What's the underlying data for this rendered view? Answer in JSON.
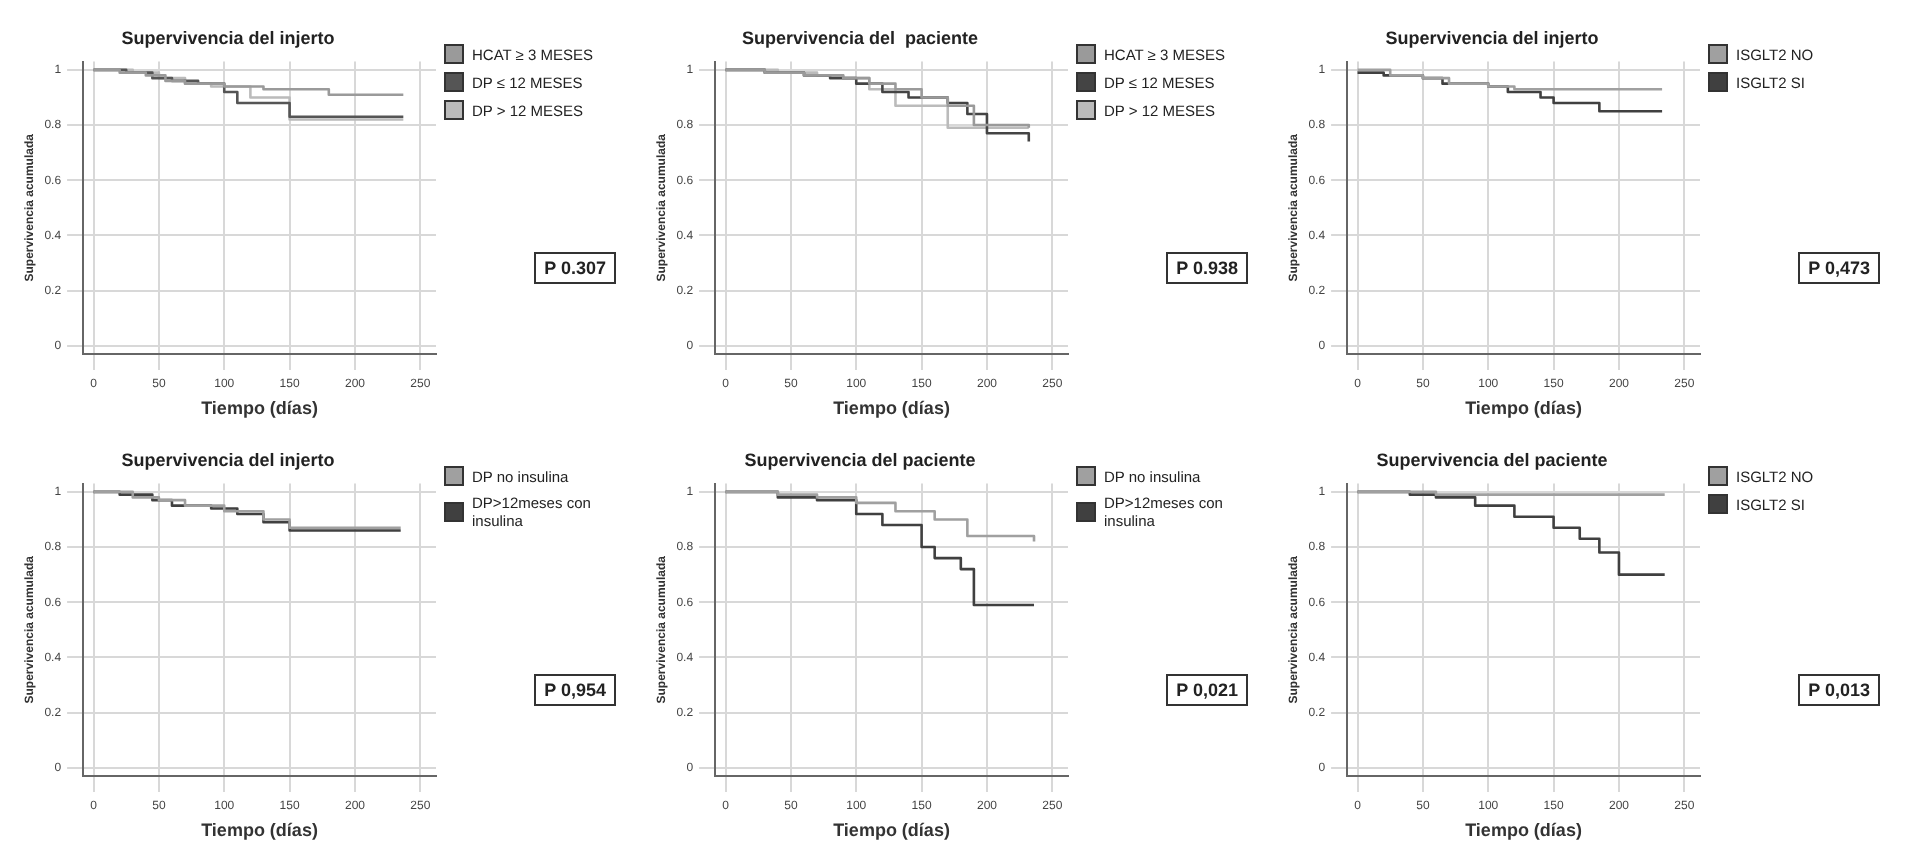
{
  "chart_data": [
    {
      "type": "step",
      "title": "Supervivencia del injerto",
      "xlabel": "Tiempo (días)",
      "ylabel": "Supervivencia acumulada",
      "xlim": [
        -8,
        262
      ],
      "ylim": [
        -0.03,
        1.03
      ],
      "xticks": [
        0,
        50,
        100,
        150,
        200,
        250
      ],
      "yticks": [
        0,
        0.2,
        0.4,
        0.6,
        0.8,
        1
      ],
      "grid": true,
      "legend": "right",
      "annotations": [
        "P 0.307"
      ],
      "series": [
        {
          "name": "HCAT ≥ 3 MESES",
          "color": "#9a9a9a",
          "x": [
            0,
            20,
            40,
            55,
            70,
            100,
            130,
            180,
            237
          ],
          "values": [
            1,
            0.99,
            0.98,
            0.96,
            0.95,
            0.94,
            0.93,
            0.91,
            0.91
          ]
        },
        {
          "name": "DP ≤ 12 MESES",
          "color": "#555555",
          "x": [
            0,
            25,
            45,
            60,
            80,
            100,
            110,
            150,
            237
          ],
          "values": [
            1,
            0.99,
            0.97,
            0.96,
            0.95,
            0.92,
            0.88,
            0.83,
            0.83
          ]
        },
        {
          "name": "DP > 12 MESES",
          "color": "#bbbbbb",
          "x": [
            0,
            30,
            50,
            70,
            90,
            120,
            150,
            237
          ],
          "values": [
            1,
            0.99,
            0.97,
            0.95,
            0.94,
            0.9,
            0.82,
            0.82
          ]
        }
      ]
    },
    {
      "type": "step",
      "title": "Supervivencia del  paciente",
      "xlabel": "Tiempo (días)",
      "ylabel": "Supervivencia acumulada",
      "xlim": [
        -8,
        262
      ],
      "ylim": [
        -0.03,
        1.03
      ],
      "xticks": [
        0,
        50,
        100,
        150,
        200,
        250
      ],
      "yticks": [
        0,
        0.2,
        0.4,
        0.6,
        0.8,
        1
      ],
      "grid": true,
      "legend": "right",
      "annotations": [
        "P 0.938"
      ],
      "series": [
        {
          "name": "HCAT ≥ 3 MESES",
          "color": "#9a9a9a",
          "x": [
            0,
            30,
            60,
            90,
            110,
            130,
            150,
            170,
            190,
            232
          ],
          "values": [
            1,
            0.99,
            0.98,
            0.97,
            0.95,
            0.93,
            0.9,
            0.87,
            0.8,
            0.79
          ]
        },
        {
          "name": "DP ≤ 12 MESES",
          "color": "#444444",
          "x": [
            0,
            30,
            60,
            80,
            100,
            120,
            140,
            170,
            185,
            200,
            232
          ],
          "values": [
            1,
            0.99,
            0.98,
            0.97,
            0.95,
            0.92,
            0.9,
            0.88,
            0.84,
            0.77,
            0.74
          ]
        },
        {
          "name": "DP > 12 MESES",
          "color": "#bbbbbb",
          "x": [
            0,
            40,
            70,
            90,
            110,
            130,
            170,
            232
          ],
          "values": [
            1,
            0.99,
            0.98,
            0.97,
            0.93,
            0.87,
            0.79,
            0.79
          ]
        }
      ]
    },
    {
      "type": "step",
      "title": "Supervivencia del injerto",
      "xlabel": "Tiempo (días)",
      "ylabel": "Supervivencia acumulada",
      "xlim": [
        -8,
        262
      ],
      "ylim": [
        -0.03,
        1.03
      ],
      "xticks": [
        0,
        50,
        100,
        150,
        200,
        250
      ],
      "yticks": [
        0,
        0.2,
        0.4,
        0.6,
        0.8,
        1
      ],
      "grid": true,
      "legend": "right",
      "annotations": [
        "P 0,473"
      ],
      "series": [
        {
          "name": "ISGLT2 NO",
          "color": "#a0a0a0",
          "x": [
            0,
            25,
            50,
            70,
            100,
            120,
            233
          ],
          "values": [
            1,
            0.98,
            0.97,
            0.95,
            0.94,
            0.93,
            0.93
          ]
        },
        {
          "name": "ISGLT2 SI",
          "color": "#404040",
          "x": [
            0,
            20,
            50,
            65,
            100,
            115,
            140,
            150,
            180,
            185,
            233
          ],
          "values": [
            0.99,
            0.98,
            0.97,
            0.95,
            0.94,
            0.92,
            0.9,
            0.88,
            0.88,
            0.85,
            0.85
          ]
        }
      ]
    },
    {
      "type": "step",
      "title": "Supervivencia del injerto",
      "xlabel": "Tiempo (días)",
      "ylabel": "Supervivencia acumulada",
      "xlim": [
        -8,
        262
      ],
      "ylim": [
        -0.03,
        1.03
      ],
      "xticks": [
        0,
        50,
        100,
        150,
        200,
        250
      ],
      "yticks": [
        0,
        0.2,
        0.4,
        0.6,
        0.8,
        1
      ],
      "grid": true,
      "legend": "right",
      "annotations": [
        "P 0,954"
      ],
      "series": [
        {
          "name": "DP no insulina",
          "color": "#a0a0a0",
          "x": [
            0,
            30,
            50,
            70,
            100,
            130,
            150,
            235
          ],
          "values": [
            1,
            0.98,
            0.97,
            0.95,
            0.93,
            0.9,
            0.87,
            0.87
          ]
        },
        {
          "name": "DP>12meses con insulina",
          "color": "#404040",
          "x": [
            0,
            20,
            45,
            60,
            90,
            110,
            130,
            150,
            235
          ],
          "values": [
            1,
            0.99,
            0.97,
            0.95,
            0.94,
            0.92,
            0.89,
            0.86,
            0.86
          ]
        }
      ]
    },
    {
      "type": "step",
      "title": "Supervivencia del paciente",
      "xlabel": "Tiempo (días)",
      "ylabel": "Supervivencia acumulada",
      "xlim": [
        -8,
        262
      ],
      "ylim": [
        -0.03,
        1.03
      ],
      "xticks": [
        0,
        50,
        100,
        150,
        200,
        250
      ],
      "yticks": [
        0,
        0.2,
        0.4,
        0.6,
        0.8,
        1
      ],
      "grid": true,
      "legend": "right",
      "annotations": [
        "P 0,021"
      ],
      "series": [
        {
          "name": "DP no insulina",
          "color": "#a0a0a0",
          "x": [
            0,
            40,
            70,
            100,
            130,
            160,
            185,
            236
          ],
          "values": [
            1,
            0.99,
            0.98,
            0.96,
            0.93,
            0.9,
            0.84,
            0.82
          ]
        },
        {
          "name": "DP>12meses con insulina",
          "color": "#404040",
          "x": [
            0,
            40,
            70,
            100,
            120,
            150,
            160,
            180,
            190,
            236
          ],
          "values": [
            1,
            0.98,
            0.97,
            0.92,
            0.88,
            0.8,
            0.76,
            0.72,
            0.59,
            0.59
          ]
        }
      ]
    },
    {
      "type": "step",
      "title": "Supervivencia del paciente",
      "xlabel": "Tiempo (días)",
      "ylabel": "Supervivencia acumulada",
      "xlim": [
        -8,
        262
      ],
      "ylim": [
        -0.03,
        1.03
      ],
      "xticks": [
        0,
        50,
        100,
        150,
        200,
        250
      ],
      "yticks": [
        0,
        0.2,
        0.4,
        0.6,
        0.8,
        1
      ],
      "grid": true,
      "legend": "right",
      "annotations": [
        "P 0,013"
      ],
      "series": [
        {
          "name": "ISGLT2 NO",
          "color": "#a0a0a0",
          "x": [
            0,
            60,
            235
          ],
          "values": [
            1,
            0.99,
            0.99
          ]
        },
        {
          "name": "ISGLT2 SI",
          "color": "#404040",
          "x": [
            0,
            40,
            60,
            90,
            120,
            150,
            170,
            185,
            200,
            235
          ],
          "values": [
            1,
            0.99,
            0.98,
            0.95,
            0.91,
            0.87,
            0.83,
            0.78,
            0.7,
            0.7
          ]
        }
      ]
    }
  ]
}
